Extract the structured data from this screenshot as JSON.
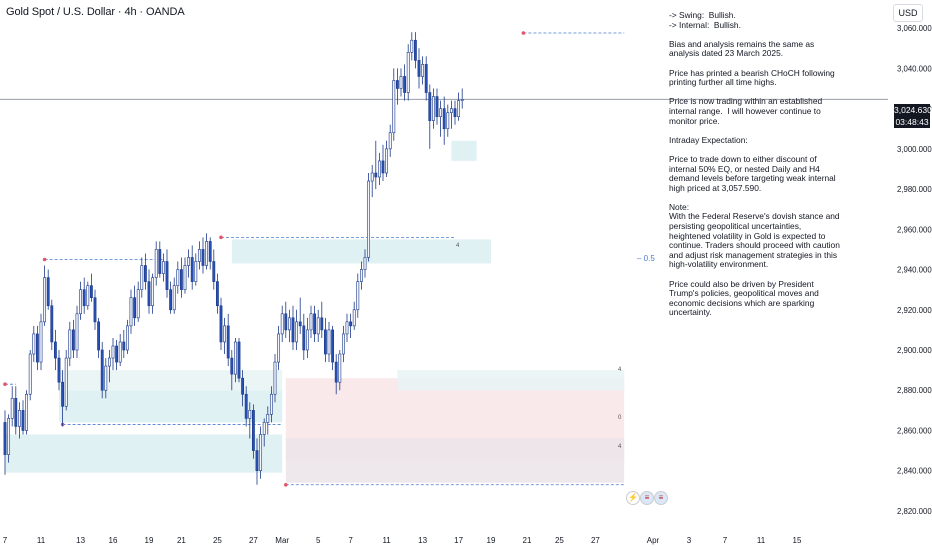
{
  "header": {
    "title": "Gold Spot / U.S. Dollar · 4h · OANDA",
    "currency_button": "USD"
  },
  "price_tag": {
    "price": "3,024.630",
    "countdown": "03:48:43"
  },
  "notes": [
    "-> Swing:  Bullish.\n-> Internal:  Bullish.",
    "Bias and analysis remains the same as analysis dated 23 March 2025.",
    "Price has printed a bearish CHoCH following printing further all time highs.",
    "Price is now trading within an established internal range.  I will however continue to monitor price.",
    "Intraday Expectation:",
    "Price to trade down to either discount of internal 50% EQ, or nested Daily and H4 demand levels before targeting weak internal high priced at 3,057.590.",
    "Note:\nWith the Federal Reserve's dovish stance and persisting geopolitical uncertainties, heightened volatility in Gold is expected to continue. Traders should proceed with caution and adjust risk management strategies in this high-volatility environment.",
    "Price could also be driven by President Trump's policies, geopolitical moves and economic decisions which are sparking uncertainty."
  ],
  "fib_label": "0.5",
  "zone_labels": [
    "4",
    "0",
    "4",
    "4"
  ],
  "icons": [
    "lightning-icon",
    "us-flag-icon",
    "us-flag-icon"
  ],
  "chart_data": {
    "type": "candlestick",
    "symbol": "Gold Spot / U.S. Dollar",
    "interval": "4h",
    "source": "OANDA",
    "y_axis": {
      "ticks": [
        2820,
        2840,
        2860,
        2880,
        2900,
        2920,
        2940,
        2960,
        2980,
        3000,
        3020,
        3040,
        3060
      ],
      "tick_labels": [
        "2,820.000",
        "2,840.000",
        "2,860.000",
        "2,880.000",
        "2,900.000",
        "2,920.000",
        "2,940.000",
        "2,960.000",
        "2,980.000",
        "3,000.000",
        "3,020.000",
        "3,040.000",
        "3,060.000"
      ],
      "range": [
        2814,
        3074
      ]
    },
    "x_axis": {
      "tick_labels": [
        "7",
        "11",
        "13",
        "16",
        "19",
        "21",
        "25",
        "27",
        "Mar",
        "5",
        "7",
        "11",
        "13",
        "17",
        "19",
        "21",
        "25",
        "27",
        "Apr",
        "3",
        "7",
        "11",
        "15"
      ],
      "tick_units": [
        0,
        10,
        21,
        30,
        40,
        49,
        59,
        69,
        77,
        87,
        96,
        106,
        116,
        126,
        135,
        145,
        154,
        164,
        180,
        190,
        200,
        210,
        220
      ]
    },
    "current_price": 3024.63,
    "weak_internal_high": 3057.59,
    "colors": {
      "up": "#f4f6fb",
      "down": "#2850b4",
      "wick": "#1c3a8a",
      "dashed": "#4a7bd0"
    },
    "candles": [
      {
        "o": 2864,
        "h": 2870,
        "l": 2838,
        "c": 2848
      },
      {
        "o": 2848,
        "h": 2868,
        "l": 2844,
        "c": 2866
      },
      {
        "o": 2866,
        "h": 2882,
        "l": 2862,
        "c": 2876
      },
      {
        "o": 2876,
        "h": 2882,
        "l": 2858,
        "c": 2862
      },
      {
        "o": 2862,
        "h": 2874,
        "l": 2856,
        "c": 2870
      },
      {
        "o": 2870,
        "h": 2875,
        "l": 2858,
        "c": 2860
      },
      {
        "o": 2860,
        "h": 2880,
        "l": 2858,
        "c": 2878
      },
      {
        "o": 2878,
        "h": 2900,
        "l": 2875,
        "c": 2898
      },
      {
        "o": 2898,
        "h": 2912,
        "l": 2894,
        "c": 2908
      },
      {
        "o": 2908,
        "h": 2912,
        "l": 2890,
        "c": 2894
      },
      {
        "o": 2894,
        "h": 2918,
        "l": 2890,
        "c": 2914
      },
      {
        "o": 2914,
        "h": 2942,
        "l": 2912,
        "c": 2936
      },
      {
        "o": 2936,
        "h": 2940,
        "l": 2920,
        "c": 2922
      },
      {
        "o": 2922,
        "h": 2925,
        "l": 2900,
        "c": 2904
      },
      {
        "o": 2904,
        "h": 2910,
        "l": 2890,
        "c": 2896
      },
      {
        "o": 2896,
        "h": 2900,
        "l": 2880,
        "c": 2884
      },
      {
        "o": 2884,
        "h": 2890,
        "l": 2862,
        "c": 2872
      },
      {
        "o": 2872,
        "h": 2900,
        "l": 2870,
        "c": 2896
      },
      {
        "o": 2896,
        "h": 2914,
        "l": 2892,
        "c": 2910
      },
      {
        "o": 2910,
        "h": 2915,
        "l": 2896,
        "c": 2900
      },
      {
        "o": 2900,
        "h": 2922,
        "l": 2896,
        "c": 2918
      },
      {
        "o": 2918,
        "h": 2934,
        "l": 2915,
        "c": 2930
      },
      {
        "o": 2930,
        "h": 2936,
        "l": 2918,
        "c": 2922
      },
      {
        "o": 2922,
        "h": 2934,
        "l": 2920,
        "c": 2932
      },
      {
        "o": 2932,
        "h": 2938,
        "l": 2924,
        "c": 2926
      },
      {
        "o": 2926,
        "h": 2930,
        "l": 2910,
        "c": 2914
      },
      {
        "o": 2914,
        "h": 2916,
        "l": 2896,
        "c": 2900
      },
      {
        "o": 2900,
        "h": 2904,
        "l": 2876,
        "c": 2880
      },
      {
        "o": 2880,
        "h": 2896,
        "l": 2876,
        "c": 2892
      },
      {
        "o": 2892,
        "h": 2900,
        "l": 2884,
        "c": 2896
      },
      {
        "o": 2896,
        "h": 2906,
        "l": 2890,
        "c": 2902
      },
      {
        "o": 2902,
        "h": 2905,
        "l": 2890,
        "c": 2894
      },
      {
        "o": 2894,
        "h": 2908,
        "l": 2892,
        "c": 2904
      },
      {
        "o": 2904,
        "h": 2910,
        "l": 2896,
        "c": 2900
      },
      {
        "o": 2900,
        "h": 2915,
        "l": 2898,
        "c": 2912
      },
      {
        "o": 2912,
        "h": 2930,
        "l": 2908,
        "c": 2926
      },
      {
        "o": 2926,
        "h": 2932,
        "l": 2912,
        "c": 2916
      },
      {
        "o": 2916,
        "h": 2934,
        "l": 2914,
        "c": 2930
      },
      {
        "o": 2930,
        "h": 2946,
        "l": 2926,
        "c": 2942
      },
      {
        "o": 2942,
        "h": 2948,
        "l": 2930,
        "c": 2934
      },
      {
        "o": 2934,
        "h": 2940,
        "l": 2918,
        "c": 2922
      },
      {
        "o": 2922,
        "h": 2938,
        "l": 2918,
        "c": 2936
      },
      {
        "o": 2936,
        "h": 2954,
        "l": 2932,
        "c": 2950
      },
      {
        "o": 2950,
        "h": 2954,
        "l": 2936,
        "c": 2938
      },
      {
        "o": 2938,
        "h": 2948,
        "l": 2934,
        "c": 2944
      },
      {
        "o": 2944,
        "h": 2950,
        "l": 2926,
        "c": 2930
      },
      {
        "o": 2930,
        "h": 2934,
        "l": 2918,
        "c": 2920
      },
      {
        "o": 2920,
        "h": 2936,
        "l": 2918,
        "c": 2932
      },
      {
        "o": 2932,
        "h": 2944,
        "l": 2928,
        "c": 2940
      },
      {
        "o": 2940,
        "h": 2946,
        "l": 2926,
        "c": 2930
      },
      {
        "o": 2930,
        "h": 2946,
        "l": 2928,
        "c": 2942
      },
      {
        "o": 2942,
        "h": 2950,
        "l": 2936,
        "c": 2946
      },
      {
        "o": 2946,
        "h": 2952,
        "l": 2930,
        "c": 2934
      },
      {
        "o": 2934,
        "h": 2948,
        "l": 2932,
        "c": 2944
      },
      {
        "o": 2944,
        "h": 2954,
        "l": 2940,
        "c": 2950
      },
      {
        "o": 2950,
        "h": 2956,
        "l": 2938,
        "c": 2942
      },
      {
        "o": 2942,
        "h": 2958,
        "l": 2940,
        "c": 2954
      },
      {
        "o": 2954,
        "h": 2956,
        "l": 2940,
        "c": 2944
      },
      {
        "o": 2944,
        "h": 2950,
        "l": 2930,
        "c": 2934
      },
      {
        "o": 2934,
        "h": 2938,
        "l": 2918,
        "c": 2922
      },
      {
        "o": 2922,
        "h": 2926,
        "l": 2900,
        "c": 2904
      },
      {
        "o": 2904,
        "h": 2916,
        "l": 2898,
        "c": 2912
      },
      {
        "o": 2912,
        "h": 2918,
        "l": 2892,
        "c": 2896
      },
      {
        "o": 2896,
        "h": 2900,
        "l": 2880,
        "c": 2888
      },
      {
        "o": 2888,
        "h": 2906,
        "l": 2884,
        "c": 2904
      },
      {
        "o": 2904,
        "h": 2906,
        "l": 2884,
        "c": 2886
      },
      {
        "o": 2886,
        "h": 2890,
        "l": 2872,
        "c": 2878
      },
      {
        "o": 2878,
        "h": 2882,
        "l": 2862,
        "c": 2866
      },
      {
        "o": 2866,
        "h": 2874,
        "l": 2856,
        "c": 2870
      },
      {
        "o": 2870,
        "h": 2873,
        "l": 2846,
        "c": 2850
      },
      {
        "o": 2850,
        "h": 2856,
        "l": 2833,
        "c": 2840
      },
      {
        "o": 2840,
        "h": 2862,
        "l": 2836,
        "c": 2858
      },
      {
        "o": 2858,
        "h": 2866,
        "l": 2852,
        "c": 2864
      },
      {
        "o": 2864,
        "h": 2872,
        "l": 2858,
        "c": 2868
      },
      {
        "o": 2868,
        "h": 2882,
        "l": 2864,
        "c": 2878
      },
      {
        "o": 2878,
        "h": 2898,
        "l": 2874,
        "c": 2894
      },
      {
        "o": 2894,
        "h": 2912,
        "l": 2890,
        "c": 2908
      },
      {
        "o": 2908,
        "h": 2922,
        "l": 2904,
        "c": 2918
      },
      {
        "o": 2918,
        "h": 2924,
        "l": 2906,
        "c": 2910
      },
      {
        "o": 2910,
        "h": 2920,
        "l": 2904,
        "c": 2916
      },
      {
        "o": 2916,
        "h": 2922,
        "l": 2900,
        "c": 2904
      },
      {
        "o": 2904,
        "h": 2920,
        "l": 2900,
        "c": 2914
      },
      {
        "o": 2914,
        "h": 2926,
        "l": 2908,
        "c": 2912
      },
      {
        "o": 2912,
        "h": 2918,
        "l": 2895,
        "c": 2900
      },
      {
        "o": 2900,
        "h": 2916,
        "l": 2896,
        "c": 2910
      },
      {
        "o": 2910,
        "h": 2922,
        "l": 2906,
        "c": 2918
      },
      {
        "o": 2918,
        "h": 2922,
        "l": 2904,
        "c": 2908
      },
      {
        "o": 2908,
        "h": 2920,
        "l": 2904,
        "c": 2916
      },
      {
        "o": 2916,
        "h": 2924,
        "l": 2906,
        "c": 2910
      },
      {
        "o": 2910,
        "h": 2916,
        "l": 2894,
        "c": 2898
      },
      {
        "o": 2898,
        "h": 2914,
        "l": 2894,
        "c": 2910
      },
      {
        "o": 2910,
        "h": 2912,
        "l": 2890,
        "c": 2894
      },
      {
        "o": 2894,
        "h": 2898,
        "l": 2878,
        "c": 2884
      },
      {
        "o": 2884,
        "h": 2900,
        "l": 2880,
        "c": 2898
      },
      {
        "o": 2898,
        "h": 2912,
        "l": 2894,
        "c": 2908
      },
      {
        "o": 2908,
        "h": 2918,
        "l": 2904,
        "c": 2914
      },
      {
        "o": 2914,
        "h": 2918,
        "l": 2906,
        "c": 2912
      },
      {
        "o": 2912,
        "h": 2924,
        "l": 2910,
        "c": 2920
      },
      {
        "o": 2920,
        "h": 2938,
        "l": 2916,
        "c": 2934
      },
      {
        "o": 2934,
        "h": 2944,
        "l": 2930,
        "c": 2940
      },
      {
        "o": 2940,
        "h": 2950,
        "l": 2936,
        "c": 2946
      },
      {
        "o": 2946,
        "h": 2988,
        "l": 2944,
        "c": 2984
      },
      {
        "o": 2984,
        "h": 2992,
        "l": 2976,
        "c": 2988
      },
      {
        "o": 2988,
        "h": 3004,
        "l": 2980,
        "c": 2986
      },
      {
        "o": 2986,
        "h": 2998,
        "l": 2982,
        "c": 2994
      },
      {
        "o": 2994,
        "h": 3002,
        "l": 2984,
        "c": 2988
      },
      {
        "o": 2988,
        "h": 3004,
        "l": 2986,
        "c": 3000
      },
      {
        "o": 3000,
        "h": 3012,
        "l": 2996,
        "c": 3008
      },
      {
        "o": 3008,
        "h": 3040,
        "l": 3004,
        "c": 3034
      },
      {
        "o": 3034,
        "h": 3040,
        "l": 3022,
        "c": 3030
      },
      {
        "o": 3030,
        "h": 3040,
        "l": 3026,
        "c": 3036
      },
      {
        "o": 3036,
        "h": 3042,
        "l": 3024,
        "c": 3028
      },
      {
        "o": 3028,
        "h": 3052,
        "l": 3024,
        "c": 3048
      },
      {
        "o": 3048,
        "h": 3058,
        "l": 3044,
        "c": 3054
      },
      {
        "o": 3054,
        "h": 3058,
        "l": 3040,
        "c": 3044
      },
      {
        "o": 3044,
        "h": 3050,
        "l": 3030,
        "c": 3036
      },
      {
        "o": 3036,
        "h": 3046,
        "l": 3032,
        "c": 3042
      },
      {
        "o": 3042,
        "h": 3046,
        "l": 3024,
        "c": 3028
      },
      {
        "o": 3028,
        "h": 3032,
        "l": 3000,
        "c": 3014
      },
      {
        "o": 3014,
        "h": 3030,
        "l": 3010,
        "c": 3026
      },
      {
        "o": 3026,
        "h": 3030,
        "l": 3012,
        "c": 3016
      },
      {
        "o": 3016,
        "h": 3024,
        "l": 3006,
        "c": 3020
      },
      {
        "o": 3020,
        "h": 3026,
        "l": 3002,
        "c": 3010
      },
      {
        "o": 3010,
        "h": 3022,
        "l": 3006,
        "c": 3018
      },
      {
        "o": 3018,
        "h": 3024,
        "l": 3010,
        "c": 3020
      },
      {
        "o": 3020,
        "h": 3024,
        "l": 3012,
        "c": 3016
      },
      {
        "o": 3016,
        "h": 3028,
        "l": 3014,
        "c": 3024
      },
      {
        "o": 3024,
        "h": 3030,
        "l": 3020,
        "c": 3024.63
      }
    ],
    "zones": [
      {
        "from": 0,
        "to": 77,
        "y1": 2839,
        "y2": 2858,
        "kind": "demand"
      },
      {
        "from": 15,
        "to": 77,
        "y1": 2864,
        "y2": 2880,
        "kind": "demand"
      },
      {
        "from": 15,
        "to": 77,
        "y1": 2880,
        "y2": 2890,
        "kind": "demand-light"
      },
      {
        "from": 63,
        "to": 135,
        "y1": 2943,
        "y2": 2955,
        "kind": "demand"
      },
      {
        "from": 124,
        "to": 131,
        "y1": 2994,
        "y2": 3004,
        "kind": "demand"
      },
      {
        "from": 78,
        "to": 172,
        "y1": 2845,
        "y2": 2886,
        "kind": "supply"
      },
      {
        "from": 109,
        "to": 172,
        "y1": 2880,
        "y2": 2890,
        "kind": "demand-light"
      },
      {
        "from": 78,
        "to": 172,
        "y1": 2834,
        "y2": 2856,
        "kind": "premium"
      }
    ],
    "levels": [
      {
        "from": 0,
        "to": 3,
        "y": 2883,
        "style": "dashed"
      },
      {
        "from": 11,
        "to": 44,
        "y": 2945,
        "style": "dashed"
      },
      {
        "from": 16,
        "to": 77,
        "y": 2863,
        "style": "dashed"
      },
      {
        "from": 60,
        "to": 125,
        "y": 2956,
        "style": "dashed"
      },
      {
        "from": 78,
        "to": 172,
        "y": 2833,
        "style": "dashed"
      },
      {
        "from": 144,
        "to": 172,
        "y": 3057.59,
        "style": "dashed"
      },
      {
        "from": 0,
        "to": 240,
        "y": 3024.63,
        "style": "solid-grey"
      }
    ]
  }
}
